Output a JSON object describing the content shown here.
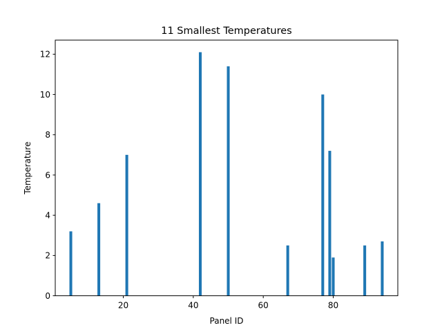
{
  "chart_data": {
    "type": "bar",
    "title": "11 Smallest Temperatures",
    "xlabel": "Panel ID",
    "ylabel": "Temperature",
    "x": [
      5,
      13,
      21,
      42,
      50,
      67,
      77,
      79,
      80,
      89,
      94
    ],
    "values": [
      3.2,
      4.6,
      7.0,
      12.1,
      11.4,
      2.5,
      10.0,
      7.2,
      1.9,
      2.5,
      2.7
    ],
    "xlim": [
      0.55,
      98.45
    ],
    "ylim": [
      0,
      12.7
    ],
    "xticks": [
      20,
      40,
      60,
      80
    ],
    "yticks": [
      0,
      2,
      4,
      6,
      8,
      10,
      12
    ],
    "bar_width": 0.8,
    "grid": false,
    "color": "#1f77b4"
  }
}
